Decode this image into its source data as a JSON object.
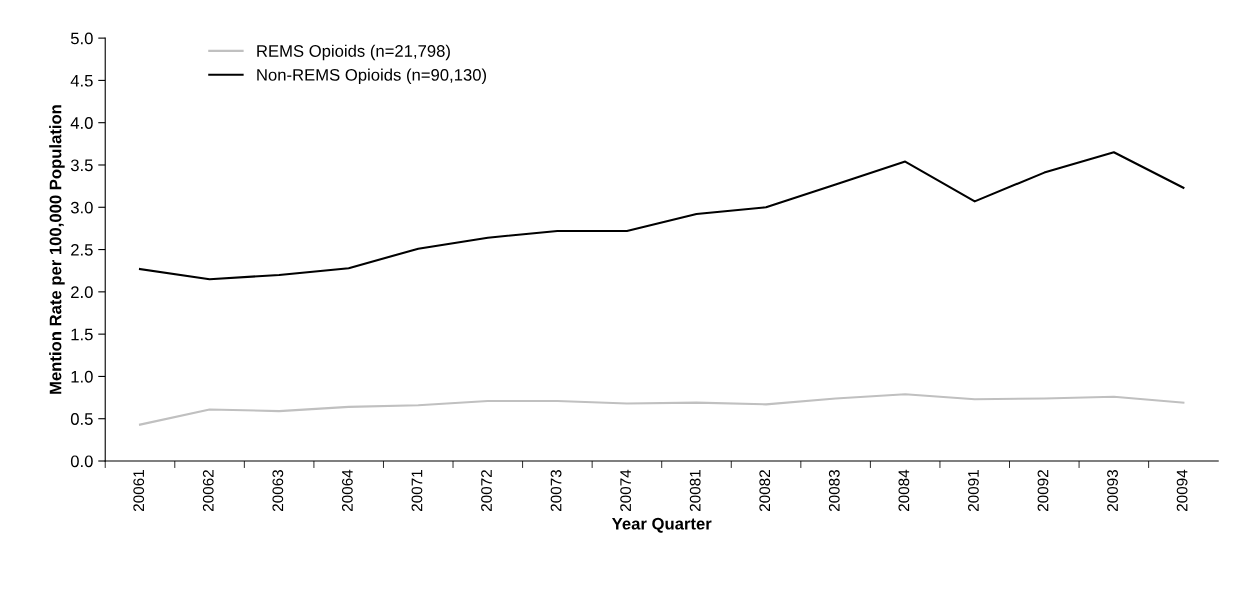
{
  "chart_data": {
    "type": "line",
    "xlabel": "Year Quarter",
    "ylabel": "Mention Rate per 100,000 Population",
    "categories": [
      "20061",
      "20062",
      "20063",
      "20064",
      "20071",
      "20072",
      "20073",
      "20074",
      "20081",
      "20082",
      "20083",
      "20084",
      "20091",
      "20092",
      "20093",
      "20094"
    ],
    "series": [
      {
        "name": "REMS Opioids (n=21,798)",
        "color": "#c0c0c0",
        "values": [
          0.43,
          0.61,
          0.59,
          0.64,
          0.66,
          0.71,
          0.71,
          0.68,
          0.69,
          0.67,
          0.74,
          0.79,
          0.73,
          0.74,
          0.76,
          0.69
        ]
      },
      {
        "name": "Non-REMS Opioids (n=90,130)",
        "color": "#000000",
        "values": [
          2.27,
          2.15,
          2.2,
          2.28,
          2.51,
          2.64,
          2.72,
          2.72,
          2.92,
          3.0,
          3.27,
          3.54,
          3.07,
          3.41,
          3.65,
          3.23
        ]
      }
    ],
    "ylim": [
      0,
      5
    ],
    "yticks": [
      {
        "value": 0,
        "label": "0.0"
      },
      {
        "value": 0.5,
        "label": "0.5"
      },
      {
        "value": 1,
        "label": "1.0"
      },
      {
        "value": 1.5,
        "label": "1.5"
      },
      {
        "value": 2,
        "label": "2.0"
      },
      {
        "value": 2.5,
        "label": "2.5"
      },
      {
        "value": 3,
        "label": "3.0"
      },
      {
        "value": 3.5,
        "label": "3.5"
      },
      {
        "value": 4,
        "label": "4.0"
      },
      {
        "value": 4.5,
        "label": "4.5"
      },
      {
        "value": 5,
        "label": "5.0"
      }
    ],
    "grid": false,
    "legend": "top left"
  }
}
